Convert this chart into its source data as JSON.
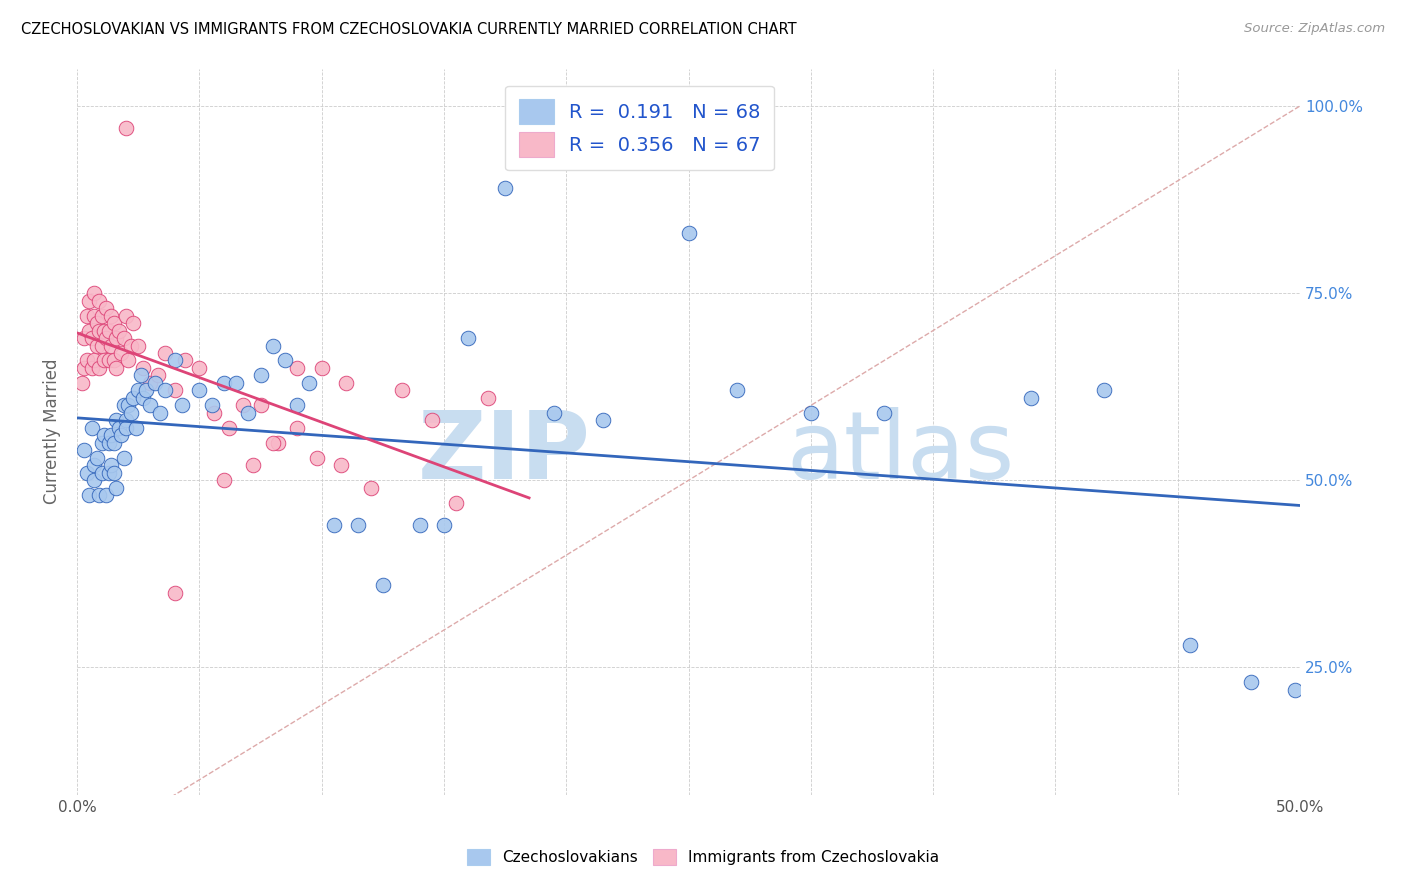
{
  "title": "CZECHOSLOVAKIAN VS IMMIGRANTS FROM CZECHOSLOVAKIA CURRENTLY MARRIED CORRELATION CHART",
  "source": "Source: ZipAtlas.com",
  "ylabel": "Currently Married",
  "xlim": [
    0.0,
    0.5
  ],
  "ylim": [
    0.08,
    1.05
  ],
  "ytick_positions": [
    0.25,
    0.5,
    0.75,
    1.0
  ],
  "yticklabels_right": [
    "25.0%",
    "50.0%",
    "75.0%",
    "100.0%"
  ],
  "r_blue": 0.191,
  "n_blue": 68,
  "r_pink": 0.356,
  "n_pink": 67,
  "color_blue": "#A8C8EE",
  "color_pink": "#F8B8C8",
  "line_blue": "#3366BB",
  "line_pink": "#DD4477",
  "line_diagonal_color": "#DDAAAA",
  "line_diagonal_style": "--",
  "blue_x": [
    0.003,
    0.004,
    0.005,
    0.006,
    0.007,
    0.007,
    0.008,
    0.009,
    0.01,
    0.01,
    0.011,
    0.012,
    0.013,
    0.013,
    0.014,
    0.014,
    0.015,
    0.015,
    0.016,
    0.016,
    0.017,
    0.018,
    0.019,
    0.019,
    0.02,
    0.02,
    0.021,
    0.022,
    0.023,
    0.024,
    0.025,
    0.026,
    0.027,
    0.028,
    0.03,
    0.032,
    0.034,
    0.036,
    0.04,
    0.043,
    0.05,
    0.055,
    0.06,
    0.065,
    0.07,
    0.075,
    0.08,
    0.085,
    0.09,
    0.095,
    0.105,
    0.115,
    0.125,
    0.14,
    0.15,
    0.16,
    0.175,
    0.195,
    0.215,
    0.25,
    0.27,
    0.3,
    0.33,
    0.39,
    0.42,
    0.455,
    0.48,
    0.498
  ],
  "blue_y": [
    0.54,
    0.51,
    0.48,
    0.57,
    0.52,
    0.5,
    0.53,
    0.48,
    0.51,
    0.55,
    0.56,
    0.48,
    0.51,
    0.55,
    0.56,
    0.52,
    0.55,
    0.51,
    0.58,
    0.49,
    0.57,
    0.56,
    0.53,
    0.6,
    0.58,
    0.57,
    0.6,
    0.59,
    0.61,
    0.57,
    0.62,
    0.64,
    0.61,
    0.62,
    0.6,
    0.63,
    0.59,
    0.62,
    0.66,
    0.6,
    0.62,
    0.6,
    0.63,
    0.63,
    0.59,
    0.64,
    0.68,
    0.66,
    0.6,
    0.63,
    0.44,
    0.44,
    0.36,
    0.44,
    0.44,
    0.69,
    0.89,
    0.59,
    0.58,
    0.83,
    0.62,
    0.59,
    0.59,
    0.61,
    0.62,
    0.28,
    0.23,
    0.22
  ],
  "pink_x": [
    0.002,
    0.003,
    0.003,
    0.004,
    0.004,
    0.005,
    0.005,
    0.006,
    0.006,
    0.007,
    0.007,
    0.007,
    0.008,
    0.008,
    0.009,
    0.009,
    0.009,
    0.01,
    0.01,
    0.011,
    0.011,
    0.012,
    0.012,
    0.013,
    0.013,
    0.014,
    0.014,
    0.015,
    0.015,
    0.016,
    0.016,
    0.017,
    0.018,
    0.019,
    0.02,
    0.021,
    0.022,
    0.023,
    0.025,
    0.027,
    0.03,
    0.033,
    0.036,
    0.04,
    0.044,
    0.05,
    0.056,
    0.062,
    0.068,
    0.075,
    0.082,
    0.09,
    0.098,
    0.108,
    0.12,
    0.133,
    0.145,
    0.155,
    0.168,
    0.02,
    0.072,
    0.09,
    0.1,
    0.11,
    0.08,
    0.06,
    0.04
  ],
  "pink_y": [
    0.63,
    0.69,
    0.65,
    0.72,
    0.66,
    0.74,
    0.7,
    0.69,
    0.65,
    0.75,
    0.72,
    0.66,
    0.71,
    0.68,
    0.74,
    0.7,
    0.65,
    0.72,
    0.68,
    0.7,
    0.66,
    0.73,
    0.69,
    0.7,
    0.66,
    0.72,
    0.68,
    0.71,
    0.66,
    0.69,
    0.65,
    0.7,
    0.67,
    0.69,
    0.72,
    0.66,
    0.68,
    0.71,
    0.68,
    0.65,
    0.63,
    0.64,
    0.67,
    0.62,
    0.66,
    0.65,
    0.59,
    0.57,
    0.6,
    0.6,
    0.55,
    0.57,
    0.53,
    0.52,
    0.49,
    0.62,
    0.58,
    0.47,
    0.61,
    0.97,
    0.52,
    0.65,
    0.65,
    0.63,
    0.55,
    0.5,
    0.35
  ]
}
